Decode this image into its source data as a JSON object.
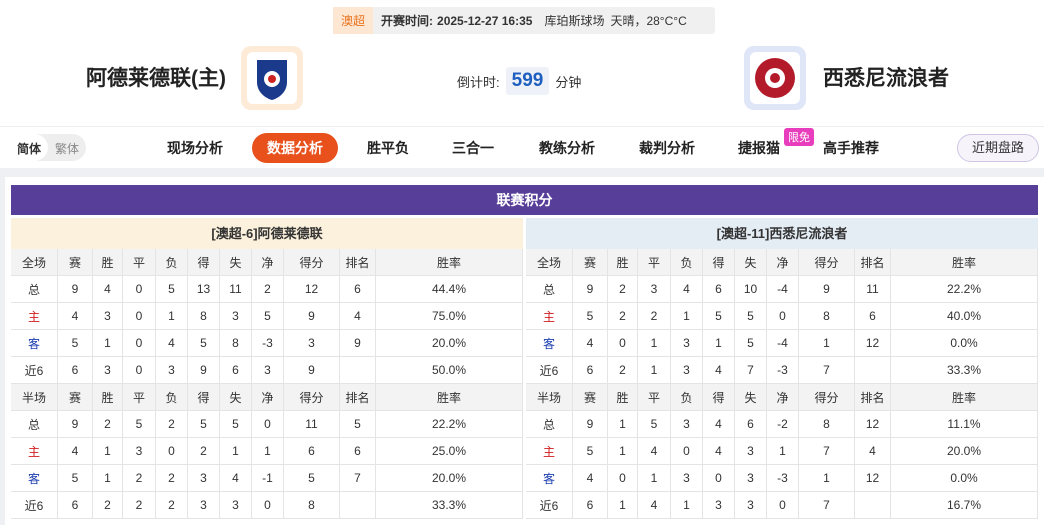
{
  "header": {
    "league": "澳超",
    "kickoff_label": "开赛时间:",
    "kickoff_time": "2025-12-27 16:35",
    "venue": "库珀斯球场",
    "weather": "天晴，28°C°C",
    "home_team": "阿德莱德联(主)",
    "away_team": "西悉尼流浪者",
    "countdown_label": "倒计时:",
    "countdown_value": "599",
    "countdown_unit": "分钟"
  },
  "nav": {
    "languages": [
      "简体",
      "繁体"
    ],
    "tabs": [
      "现场分析",
      "数据分析",
      "胜平负",
      "三合一",
      "教练分析",
      "裁判分析",
      "捷报猫",
      "高手推荐"
    ],
    "active_tab": 1,
    "badge": "限免",
    "right_button": "近期盘路"
  },
  "section_title": "联赛积分",
  "tables": [
    {
      "team_header": "[澳超-6]阿德莱德联",
      "blocks": [
        {
          "columns": [
            "全场",
            "赛",
            "胜",
            "平",
            "负",
            "得",
            "失",
            "净",
            "得分",
            "排名",
            "胜率"
          ],
          "rows": [
            [
              "总",
              9,
              4,
              0,
              5,
              13,
              11,
              2,
              12,
              6,
              "44.4%"
            ],
            [
              "主",
              4,
              3,
              0,
              1,
              8,
              3,
              5,
              9,
              4,
              "75.0%"
            ],
            [
              "客",
              5,
              1,
              0,
              4,
              5,
              8,
              -3,
              3,
              9,
              "20.0%"
            ],
            [
              "近6",
              6,
              3,
              0,
              3,
              9,
              6,
              3,
              9,
              null,
              "50.0%"
            ]
          ]
        },
        {
          "columns": [
            "半场",
            "赛",
            "胜",
            "平",
            "负",
            "得",
            "失",
            "净",
            "得分",
            "排名",
            "胜率"
          ],
          "rows": [
            [
              "总",
              9,
              2,
              5,
              2,
              5,
              5,
              0,
              11,
              5,
              "22.2%"
            ],
            [
              "主",
              4,
              1,
              3,
              0,
              2,
              1,
              1,
              6,
              6,
              "25.0%"
            ],
            [
              "客",
              5,
              1,
              2,
              2,
              3,
              4,
              -1,
              5,
              7,
              "20.0%"
            ],
            [
              "近6",
              6,
              2,
              2,
              2,
              3,
              3,
              0,
              8,
              null,
              "33.3%"
            ]
          ]
        }
      ]
    },
    {
      "team_header": "[澳超-11]西悉尼流浪者",
      "blocks": [
        {
          "columns": [
            "全场",
            "赛",
            "胜",
            "平",
            "负",
            "得",
            "失",
            "净",
            "得分",
            "排名",
            "胜率"
          ],
          "rows": [
            [
              "总",
              9,
              2,
              3,
              4,
              6,
              10,
              -4,
              9,
              11,
              "22.2%"
            ],
            [
              "主",
              5,
              2,
              2,
              1,
              5,
              5,
              0,
              8,
              6,
              "40.0%"
            ],
            [
              "客",
              4,
              0,
              1,
              3,
              1,
              5,
              -4,
              1,
              12,
              "0.0%"
            ],
            [
              "近6",
              6,
              2,
              1,
              3,
              4,
              7,
              -3,
              7,
              null,
              "33.3%"
            ]
          ]
        },
        {
          "columns": [
            "半场",
            "赛",
            "胜",
            "平",
            "负",
            "得",
            "失",
            "净",
            "得分",
            "排名",
            "胜率"
          ],
          "rows": [
            [
              "总",
              9,
              1,
              5,
              3,
              4,
              6,
              -2,
              8,
              12,
              "11.1%"
            ],
            [
              "主",
              5,
              1,
              4,
              0,
              4,
              3,
              1,
              7,
              4,
              "20.0%"
            ],
            [
              "客",
              4,
              0,
              1,
              3,
              0,
              3,
              -3,
              1,
              12,
              "0.0%"
            ],
            [
              "近6",
              6,
              1,
              4,
              1,
              3,
              3,
              0,
              7,
              null,
              "16.7%"
            ]
          ]
        }
      ]
    }
  ]
}
